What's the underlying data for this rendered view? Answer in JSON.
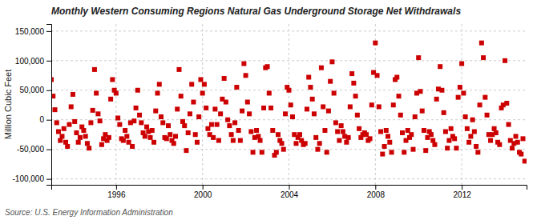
{
  "chart_data": {
    "type": "scatter",
    "title": "Monthly Western Consuming Regions Natural Gas Underground Storage Net Withdrawals",
    "ylabel": "Million Cubic Feet",
    "annotations": [
      "Source: U.S. Energy Information Administration"
    ],
    "color": "#cc0000",
    "marker": "square",
    "grid": true,
    "xlim": [
      1993.0,
      2015.0
    ],
    "ylim": [
      -110000,
      162000
    ],
    "xticks": [
      1996,
      2000,
      2004,
      2008,
      2012
    ],
    "yticks": [
      {
        "value": -100000,
        "label": "-100,000"
      },
      {
        "value": -50000,
        "label": "-50,000"
      },
      0,
      {
        "value": 50000,
        "label": "50,000"
      },
      {
        "value": 100000,
        "label": "100,000"
      },
      {
        "value": 150000,
        "label": "150,000"
      }
    ],
    "x": [
      1993.0,
      1993.083,
      1993.167,
      1993.25,
      1993.333,
      1993.417,
      1993.5,
      1993.583,
      1993.667,
      1993.75,
      1993.833,
      1993.917,
      1994.0,
      1994.083,
      1994.167,
      1994.25,
      1994.333,
      1994.417,
      1994.5,
      1994.583,
      1994.667,
      1994.75,
      1994.833,
      1994.917,
      1995.0,
      1995.083,
      1995.167,
      1995.25,
      1995.333,
      1995.417,
      1995.5,
      1995.583,
      1995.667,
      1995.75,
      1995.833,
      1995.917,
      1996.0,
      1996.083,
      1996.167,
      1996.25,
      1996.333,
      1996.417,
      1996.5,
      1996.583,
      1996.667,
      1996.75,
      1996.833,
      1996.917,
      1997.0,
      1997.083,
      1997.167,
      1997.25,
      1997.333,
      1997.417,
      1997.5,
      1997.583,
      1997.667,
      1997.75,
      1997.833,
      1997.917,
      1998.0,
      1998.083,
      1998.167,
      1998.25,
      1998.333,
      1998.417,
      1998.5,
      1998.583,
      1998.667,
      1998.75,
      1998.833,
      1998.917,
      1999.0,
      1999.083,
      1999.167,
      1999.25,
      1999.333,
      1999.417,
      1999.5,
      1999.583,
      1999.667,
      1999.75,
      1999.833,
      1999.917,
      2000.0,
      2000.083,
      2000.167,
      2000.25,
      2000.333,
      2000.417,
      2000.5,
      2000.583,
      2000.667,
      2000.75,
      2000.833,
      2000.917,
      2001.0,
      2001.083,
      2001.167,
      2001.25,
      2001.333,
      2001.417,
      2001.5,
      2001.583,
      2001.667,
      2001.75,
      2001.833,
      2001.917,
      2002.0,
      2002.083,
      2002.167,
      2002.25,
      2002.333,
      2002.417,
      2002.5,
      2002.583,
      2002.667,
      2002.75,
      2002.833,
      2002.917,
      2003.0,
      2003.083,
      2003.167,
      2003.25,
      2003.333,
      2003.417,
      2003.5,
      2003.583,
      2003.667,
      2003.75,
      2003.833,
      2003.917,
      2004.0,
      2004.083,
      2004.167,
      2004.25,
      2004.333,
      2004.417,
      2004.5,
      2004.583,
      2004.667,
      2004.75,
      2004.833,
      2004.917,
      2005.0,
      2005.083,
      2005.167,
      2005.25,
      2005.333,
      2005.417,
      2005.5,
      2005.583,
      2005.667,
      2005.75,
      2005.833,
      2005.917,
      2006.0,
      2006.083,
      2006.167,
      2006.25,
      2006.333,
      2006.417,
      2006.5,
      2006.583,
      2006.667,
      2006.75,
      2006.833,
      2006.917,
      2007.0,
      2007.083,
      2007.167,
      2007.25,
      2007.333,
      2007.417,
      2007.5,
      2007.583,
      2007.667,
      2007.75,
      2007.833,
      2007.917,
      2008.0,
      2008.083,
      2008.167,
      2008.25,
      2008.333,
      2008.417,
      2008.5,
      2008.583,
      2008.667,
      2008.75,
      2008.833,
      2008.917,
      2009.0,
      2009.083,
      2009.167,
      2009.25,
      2009.333,
      2009.417,
      2009.5,
      2009.583,
      2009.667,
      2009.75,
      2009.833,
      2009.917,
      2010.0,
      2010.083,
      2010.167,
      2010.25,
      2010.333,
      2010.417,
      2010.5,
      2010.583,
      2010.667,
      2010.75,
      2010.833,
      2010.917,
      2011.0,
      2011.083,
      2011.167,
      2011.25,
      2011.333,
      2011.417,
      2011.5,
      2011.583,
      2011.667,
      2011.75,
      2011.833,
      2011.917,
      2012.0,
      2012.083,
      2012.167,
      2012.25,
      2012.333,
      2012.417,
      2012.5,
      2012.583,
      2012.667,
      2012.75,
      2012.833,
      2012.917,
      2013.0,
      2013.083,
      2013.167,
      2013.25,
      2013.333,
      2013.417,
      2013.5,
      2013.583,
      2013.667,
      2013.75,
      2013.833,
      2013.917,
      2014.0,
      2014.083,
      2014.167,
      2014.25,
      2014.333,
      2014.417,
      2014.5,
      2014.583,
      2014.667,
      2014.75,
      2014.833,
      2014.917
    ],
    "values": [
      68000,
      40000,
      17000,
      -5000,
      -20000,
      -35000,
      -28000,
      -15000,
      -38000,
      -45000,
      -8000,
      22000,
      43000,
      -3000,
      -22000,
      -38000,
      -30000,
      -12000,
      -18000,
      -28000,
      -40000,
      -48000,
      -5000,
      16000,
      85000,
      45000,
      10000,
      -2000,
      -42000,
      -32000,
      -25000,
      -35000,
      -30000,
      35000,
      68000,
      50000,
      45000,
      3000,
      -8000,
      -32000,
      -35000,
      -18000,
      -28000,
      -38000,
      -5000,
      -45000,
      -2000,
      20000,
      50000,
      8000,
      -5000,
      -22000,
      -28000,
      -12000,
      -20000,
      -30000,
      -18000,
      -38000,
      15000,
      45000,
      60000,
      5000,
      -5000,
      -30000,
      -32000,
      -10000,
      -25000,
      -35000,
      -40000,
      -28000,
      18000,
      85000,
      40000,
      -3000,
      -10000,
      -52000,
      -22000,
      10000,
      60000,
      30000,
      -25000,
      -38000,
      5000,
      68000,
      45000,
      60000,
      20000,
      -15000,
      -25000,
      -8000,
      -30000,
      18000,
      -8000,
      -35000,
      10000,
      35000,
      70000,
      30000,
      0,
      -10000,
      -25000,
      -35000,
      -5000,
      55000,
      -18000,
      -35000,
      15000,
      95000,
      75000,
      30000,
      10000,
      -20000,
      -55000,
      -30000,
      -18000,
      -28000,
      -35000,
      -55000,
      20000,
      88000,
      90000,
      45000,
      20000,
      -18000,
      -60000,
      -55000,
      -25000,
      -35000,
      -40000,
      -50000,
      10000,
      55000,
      50000,
      25000,
      5000,
      -25000,
      -40000,
      -30000,
      -25000,
      -35000,
      -42000,
      -40000,
      18000,
      72000,
      55000,
      35000,
      10000,
      -30000,
      -50000,
      -40000,
      88000,
      22000,
      -18000,
      -55000,
      15000,
      65000,
      98000,
      45000,
      -5000,
      -20000,
      -35000,
      -10000,
      -20000,
      -28000,
      -38000,
      -30000,
      22000,
      78000,
      62000,
      40000,
      8000,
      -15000,
      -30000,
      -25000,
      -22000,
      -25000,
      -35000,
      -32000,
      25000,
      80000,
      130000,
      75000,
      22000,
      -20000,
      -58000,
      -45000,
      -18000,
      -28000,
      -38000,
      -55000,
      25000,
      68000,
      72000,
      40000,
      8000,
      -22000,
      -55000,
      -35000,
      -18000,
      -30000,
      -25000,
      -50000,
      5000,
      45000,
      105000,
      48000,
      15000,
      -18000,
      -52000,
      -30000,
      -20000,
      -25000,
      -35000,
      -42000,
      35000,
      52000,
      90000,
      50000,
      12000,
      -20000,
      -48000,
      -35000,
      -15000,
      -28000,
      -32000,
      -48000,
      38000,
      55000,
      95000,
      45000,
      5000,
      -15000,
      -38000,
      -28000,
      0,
      -20000,
      -45000,
      -55000,
      25000,
      130000,
      105000,
      38000,
      8000,
      -25000,
      -35000,
      -25000,
      -15000,
      -22000,
      -38000,
      -42000,
      20000,
      25000,
      100000,
      28000,
      -8000,
      -35000,
      -48000,
      -40000,
      -28000,
      -38000,
      -55000,
      -58000,
      -32000,
      -70000
    ]
  }
}
